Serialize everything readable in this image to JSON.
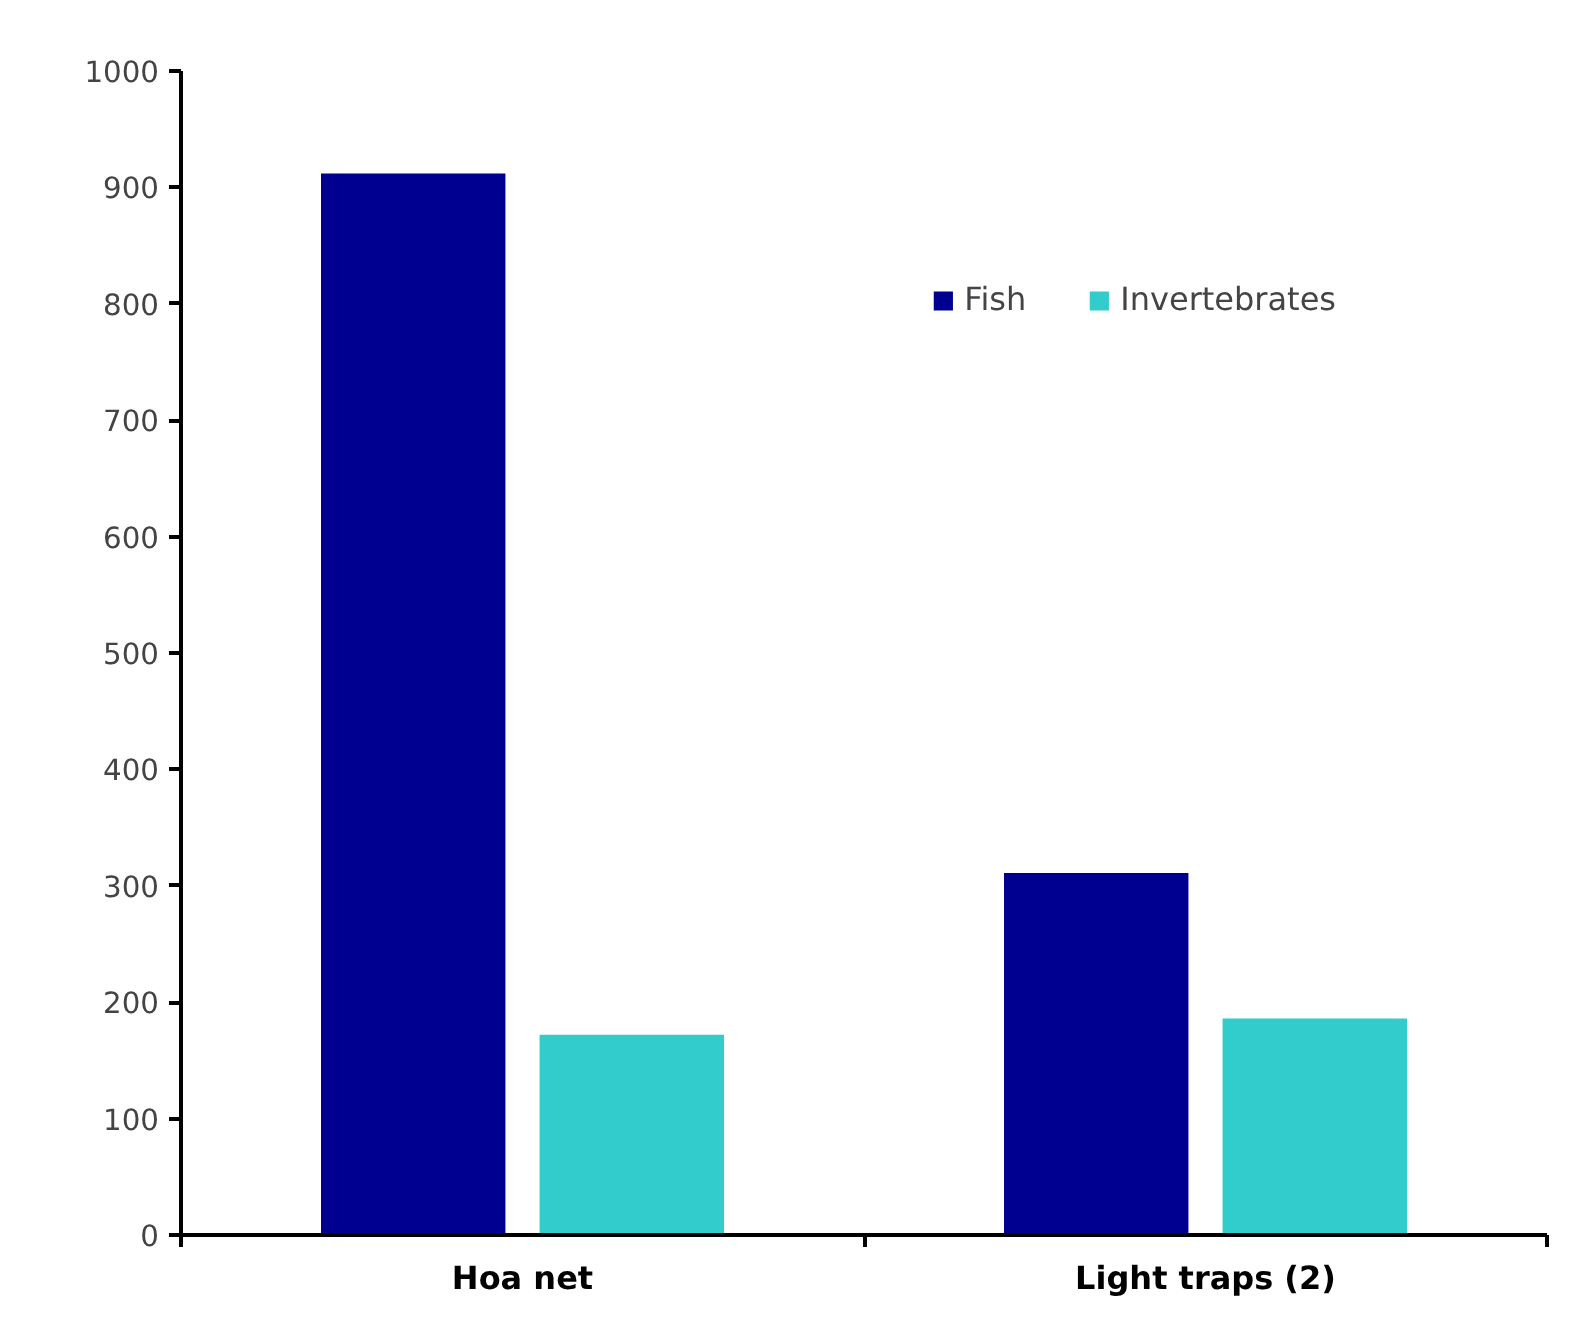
{
  "chart_data": {
    "type": "bar",
    "categories": [
      "Hoa net",
      "Light traps (2)"
    ],
    "series": [
      {
        "name": "Fish",
        "color": "#000090",
        "values": [
          912,
          311
        ]
      },
      {
        "name": "Invertebrates",
        "color": "#33cccc",
        "values": [
          172,
          186
        ]
      }
    ],
    "ylim": [
      0,
      1000
    ],
    "yticks": [
      0,
      100,
      200,
      300,
      400,
      500,
      600,
      700,
      800,
      900,
      1000
    ],
    "grid": false,
    "legend": "top right"
  }
}
